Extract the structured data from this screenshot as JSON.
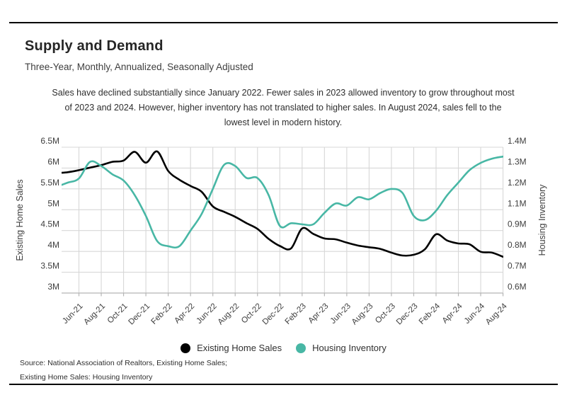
{
  "page": {
    "title": "Supply and Demand",
    "subtitle": "Three-Year, Monthly, Annualized, Seasonally Adjusted",
    "annotation_lines": [
      "Sales have declined substantially since January 2022. Fewer sales in 2023 allowed inventory to grow throughout most",
      "of 2023 and 2024. However, higher inventory has not translated to higher sales. In August 2024, sales fell to the",
      "lowest level in modern history."
    ],
    "footer_lines": [
      "Source:  National Association of Realtors, Existing Home Sales;",
      "Existing Home Sales: Housing Inventory"
    ]
  },
  "legend": {
    "items": [
      {
        "label": "Existing Home Sales",
        "color": "#000000"
      },
      {
        "label": "Housing Inventory",
        "color": "#48b7a5"
      }
    ]
  },
  "colors": {
    "accent_teal": "#48b7a5",
    "series_black": "#000000",
    "grid": "#d7d7d7",
    "axis": "#b5b5b5",
    "tick_text": "#3e3e3e"
  },
  "chart_data": {
    "type": "line",
    "months": [
      "Apr-21",
      "May-21",
      "Jun-21",
      "Jul-21",
      "Aug-21",
      "Sep-21",
      "Oct-21",
      "Nov-21",
      "Dec-21",
      "Jan-22",
      "Feb-22",
      "Mar-22",
      "Apr-22",
      "May-22",
      "Jun-22",
      "Jul-22",
      "Aug-22",
      "Sep-22",
      "Oct-22",
      "Nov-22",
      "Dec-22",
      "Jan-23",
      "Feb-23",
      "Mar-23",
      "Apr-23",
      "May-23",
      "Jun-23",
      "Jul-23",
      "Aug-23",
      "Sep-23",
      "Oct-23",
      "Nov-23",
      "Dec-23",
      "Jan-24",
      "Feb-24",
      "Mar-24",
      "Apr-24",
      "May-24",
      "Jun-24",
      "Jul-24",
      "Aug-24"
    ],
    "x_tick_labels": [
      "Jun-21",
      "Aug-21",
      "Oct-21",
      "Dec-21",
      "Feb-22",
      "Apr-22",
      "Jun-22",
      "Aug-22",
      "Oct-22",
      "Dec-22",
      "Feb-23",
      "Apr-23",
      "Jun-23",
      "Aug-23",
      "Oct-23",
      "Dec-23",
      "Feb-24",
      "Apr-24",
      "Jun-24",
      "Aug-24"
    ],
    "series": [
      {
        "name": "Existing Home Sales",
        "axis": "left",
        "color": "#000000",
        "units": "millions, SAAR",
        "values": [
          5.88,
          5.9,
          5.95,
          6.01,
          6.07,
          6.15,
          6.18,
          6.39,
          6.13,
          6.4,
          5.93,
          5.72,
          5.57,
          5.43,
          5.08,
          4.95,
          4.83,
          4.68,
          4.54,
          4.3,
          4.13,
          4.07,
          4.55,
          4.42,
          4.31,
          4.29,
          4.21,
          4.14,
          4.1,
          4.06,
          3.97,
          3.9,
          3.92,
          4.05,
          4.41,
          4.26,
          4.19,
          4.17,
          3.99,
          3.97,
          3.87
        ]
      },
      {
        "name": "Housing Inventory",
        "axis": "right",
        "color": "#48b7a5",
        "units": "millions of units",
        "values": [
          1.21,
          1.23,
          1.25,
          1.33,
          1.31,
          1.27,
          1.24,
          1.17,
          1.04,
          0.85,
          0.825,
          0.825,
          0.9,
          1.06,
          1.2,
          1.315,
          1.31,
          1.253,
          1.252,
          1.17,
          0.945,
          0.97,
          0.96,
          0.96,
          1.07,
          1.13,
          1.12,
          1.16,
          1.15,
          1.18,
          1.2,
          1.18,
          1.04,
          1.0,
          1.09,
          1.17,
          1.23,
          1.29,
          1.325,
          1.345,
          1.355
        ]
      }
    ],
    "left_axis": {
      "label": "Existing Home Sales",
      "tick_labels": [
        "6.5M",
        "6M",
        "5.5M",
        "5M",
        "4.5M",
        "4M",
        "3.5M",
        "3M"
      ],
      "tick_values": [
        6.5,
        6.0,
        5.5,
        5.0,
        4.5,
        4.0,
        3.5,
        3.0
      ],
      "range": [
        3.0,
        6.5
      ]
    },
    "right_axis": {
      "label": "Housing Inventory",
      "tick_labels": [
        "1.4M",
        "1.3M",
        "1.2M",
        "1.1M",
        "0.9M",
        "0.8M",
        "0.7M",
        "0.6M"
      ],
      "tick_values": [
        1.4,
        1.3,
        1.2,
        1.1,
        0.9,
        0.8,
        0.7,
        0.6
      ],
      "note": "1.0M label skipped; right-axis values interpolated between labeled gridlines"
    },
    "grid": true,
    "legend_position": "bottom"
  }
}
